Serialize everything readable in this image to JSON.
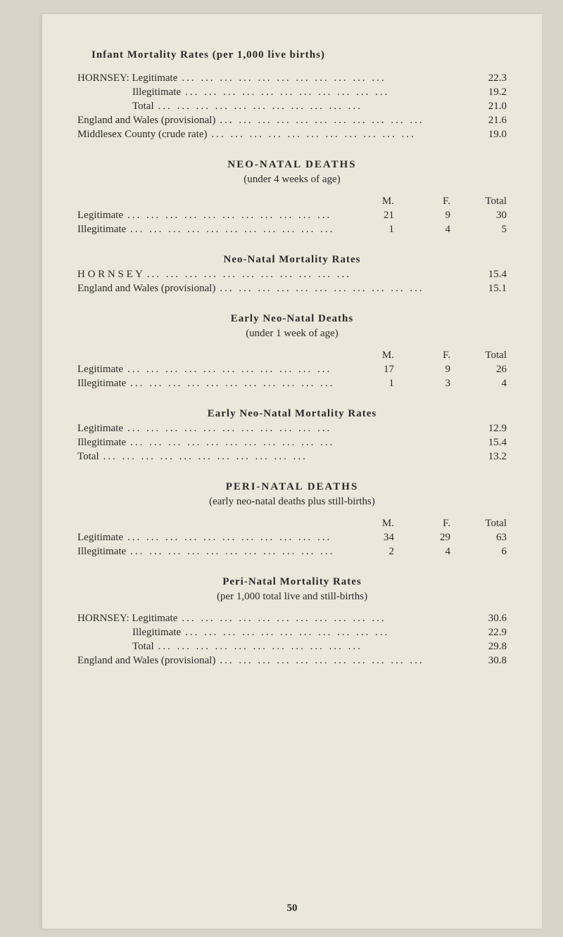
{
  "colors": {
    "page_bg": "#ebe7db",
    "outer_bg": "#d8d4c8",
    "text": "#2a2a2a"
  },
  "typography": {
    "font_family": "Georgia, Times New Roman, serif",
    "body_size_pt": 11,
    "title_letter_spacing": 2
  },
  "page_number": "50",
  "titles": {
    "imr": "Infant Mortality Rates (per 1,000 live births)",
    "neo_deaths": "NEO-NATAL DEATHS",
    "neo_deaths_sub": "(under 4 weeks of age)",
    "neo_rates": "Neo-Natal Mortality Rates",
    "early_deaths": "Early Neo-Natal Deaths",
    "early_deaths_sub": "(under 1 week of age)",
    "early_rates": "Early Neo-Natal Mortality Rates",
    "peri_deaths": "PERI-NATAL DEATHS",
    "peri_deaths_sub": "(early neo-natal deaths plus still-births)",
    "peri_rates": "Peri-Natal Mortality Rates",
    "peri_rates_sub": "(per 1,000 total live and still-births)"
  },
  "col_headers": {
    "m": "M.",
    "f": "F.",
    "total": "Total"
  },
  "imr": [
    {
      "label": "HORNSEY: Legitimate",
      "value": "22.3"
    },
    {
      "label": "Illegitimate",
      "value": "19.2",
      "indent": true
    },
    {
      "label": "Total",
      "value": "21.0",
      "indent": true
    },
    {
      "label": "England and Wales (provisional)",
      "value": "21.6"
    },
    {
      "label": "Middlesex County (crude rate)",
      "value": "19.0"
    }
  ],
  "neo_deaths": [
    {
      "label": "Legitimate",
      "m": "21",
      "f": "9",
      "total": "30"
    },
    {
      "label": "Illegitimate",
      "m": "1",
      "f": "4",
      "total": "5"
    }
  ],
  "neo_rates": [
    {
      "label": "HORNSEY",
      "value": "15.4",
      "spaced": true
    },
    {
      "label": "England and Wales (provisional)",
      "value": "15.1"
    }
  ],
  "early_deaths": [
    {
      "label": "Legitimate",
      "m": "17",
      "f": "9",
      "total": "26"
    },
    {
      "label": "Illegitimate",
      "m": "1",
      "f": "3",
      "total": "4"
    }
  ],
  "early_rates": [
    {
      "label": "Legitimate",
      "value": "12.9"
    },
    {
      "label": "Illegitimate",
      "value": "15.4"
    },
    {
      "label": "Total",
      "value": "13.2"
    }
  ],
  "peri_deaths": [
    {
      "label": "Legitimate",
      "m": "34",
      "f": "29",
      "total": "63"
    },
    {
      "label": "Illegitimate",
      "m": "2",
      "f": "4",
      "total": "6"
    }
  ],
  "peri_rates": [
    {
      "label": "HORNSEY: Legitimate",
      "value": "30.6"
    },
    {
      "label": "Illegitimate",
      "value": "22.9",
      "indent": true
    },
    {
      "label": "Total",
      "value": "29.8",
      "indent": true
    },
    {
      "label": "England and Wales (provisional)",
      "value": "30.8"
    }
  ]
}
